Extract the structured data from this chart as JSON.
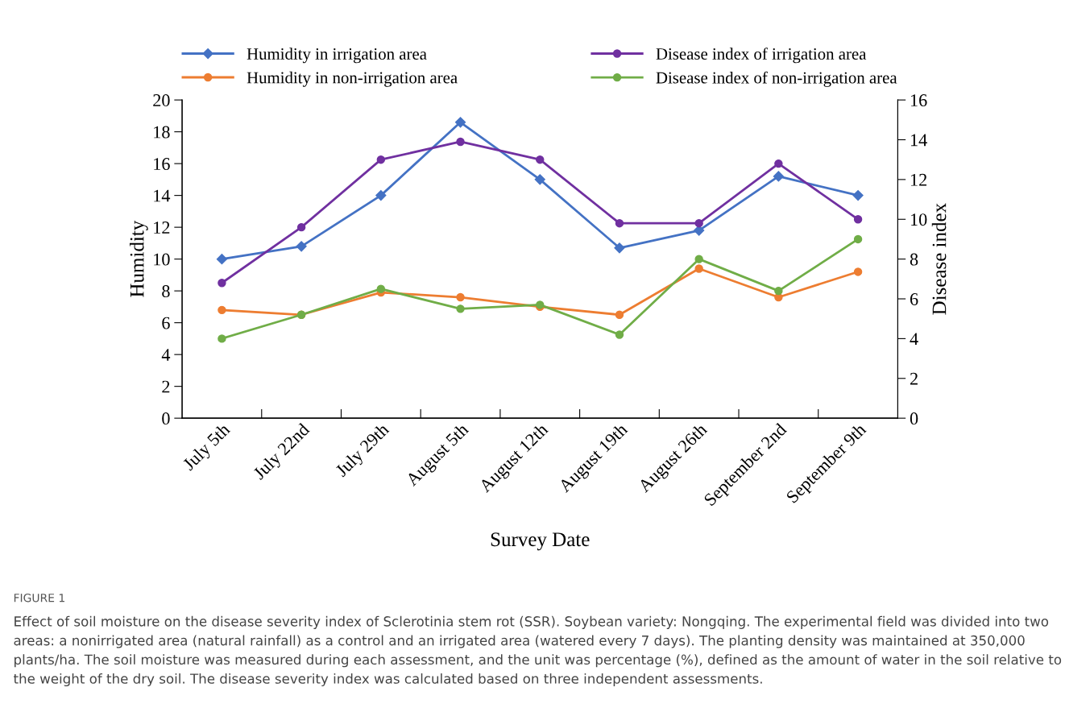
{
  "chart_data": {
    "type": "line",
    "xlabel": "Survey Date",
    "ylabel": "Humidity",
    "y2label": "Disease index",
    "categories": [
      "July 5th",
      "July 22nd",
      "July 29th",
      "August 5th",
      "August 12th",
      "August 19th",
      "August 26th",
      "September 2nd",
      "September 9th"
    ],
    "series": [
      {
        "name": "Humidity in irrigation area",
        "color": "#4472c4",
        "marker": "diamond",
        "values": [
          10.0,
          10.8,
          14.0,
          18.6,
          15.0,
          10.7,
          11.8,
          15.2,
          14.0
        ]
      },
      {
        "name": "Humidity in non-irrigation area",
        "color": "#ed7d31",
        "marker": "circle",
        "values": [
          6.8,
          6.5,
          7.9,
          7.6,
          7.0,
          6.5,
          9.4,
          7.6,
          9.2
        ]
      },
      {
        "name": "Disease index of irrigation area",
        "color": "#7030a0",
        "marker": "circle",
        "axis": "y2",
        "values": [
          6.8,
          9.6,
          13.0,
          13.9,
          13.0,
          9.8,
          9.8,
          12.8,
          10.0
        ]
      },
      {
        "name": "Disease index of non-irrigation area",
        "color": "#70ad47",
        "marker": "circle",
        "axis": "y2",
        "values": [
          4.0,
          5.2,
          6.5,
          5.5,
          5.7,
          4.2,
          8.0,
          6.4,
          9.0
        ]
      }
    ],
    "ylim": [
      0,
      20
    ],
    "yticks": [
      0,
      2,
      4,
      6,
      8,
      10,
      12,
      14,
      16,
      18,
      20
    ],
    "y2lim": [
      0,
      16
    ],
    "y2ticks": [
      0,
      2,
      4,
      6,
      8,
      10,
      12,
      14,
      16
    ],
    "legend": "top",
    "grid": false,
    "line_style": "solid",
    "annotations": [
      "FIGURE 1",
      "Effect of soil moisture on the disease severity index of Sclerotinia stem rot (SSR). Soybean variety: Nongqing. The experimental field was divided into two areas: a nonirrigated area (natural rainfall) as a control and an irrigated area (watered every 7 days). The planting density was maintained at 350,000 plants/ha. The soil moisture was measured during each assessment, and the unit was percentage (%), defined as the amount of water in the soil relative to the weight of the dry soil. The disease severity index was calculated based on three independent assessments."
    ]
  }
}
